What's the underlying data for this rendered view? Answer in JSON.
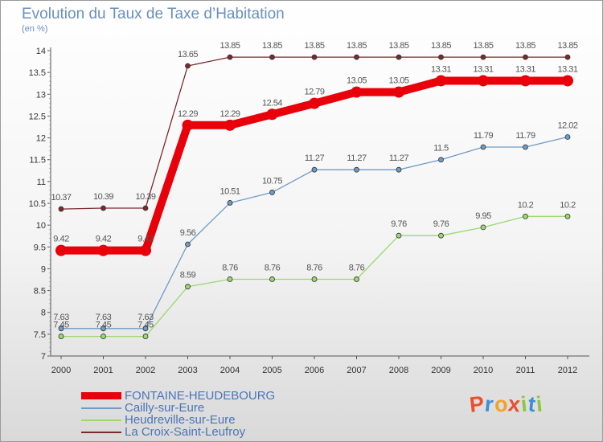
{
  "header": {
    "title": "Evolution du Taux de Taxe d’Habitation",
    "subtitle": "(en %)"
  },
  "brand": {
    "name": "Proxiti",
    "letters": [
      "P",
      "r",
      "o",
      "x",
      "i",
      "t",
      "i"
    ],
    "letter_colors": [
      "#e8502e",
      "#3b8fd8",
      "#f1a325",
      "#e8502e",
      "#8dc63f",
      "#3b8fd8",
      "#8dc63f"
    ]
  },
  "chart_data": {
    "type": "line",
    "x": [
      2000,
      2001,
      2002,
      2003,
      2004,
      2005,
      2006,
      2007,
      2008,
      2009,
      2010,
      2011,
      2012
    ],
    "ylim": [
      7,
      14
    ],
    "yticks": [
      7,
      7.5,
      8,
      8.5,
      9,
      9.5,
      10,
      10.5,
      11,
      11.5,
      12,
      12.5,
      13,
      13.5,
      14
    ],
    "grid": false,
    "legend_position": "bottom-left",
    "series": [
      {
        "name": "FONTAINE-HEUDEBOURG",
        "color": "#e8000a",
        "values": [
          9.42,
          9.42,
          9.42,
          12.29,
          12.29,
          12.54,
          12.79,
          13.05,
          13.05,
          13.31,
          13.31,
          13.31,
          13.31
        ],
        "labels": [
          "9.42",
          "9.42",
          "9.42",
          "12.29",
          "12.29",
          "12.54",
          "12.79",
          "13.05",
          "13.05",
          "13.31",
          "13.31",
          "13.31",
          "13.31"
        ],
        "emphasis": true
      },
      {
        "name": "Cailly-sur-Eure",
        "color": "#6f9bc4",
        "values": [
          7.63,
          7.63,
          7.63,
          9.56,
          10.51,
          10.75,
          11.27,
          11.27,
          11.27,
          11.5,
          11.79,
          11.79,
          12.02
        ],
        "labels": [
          "7.63",
          "7.63",
          "7.63",
          "9.56",
          "10.51",
          "10.75",
          "11.27",
          "11.27",
          "11.27",
          "11.5",
          "11.79",
          "11.79",
          "12.02"
        ],
        "emphasis": false
      },
      {
        "name": "Heudreville-sur-Eure",
        "color": "#9bd86e",
        "values": [
          7.45,
          7.45,
          7.45,
          8.59,
          8.76,
          8.76,
          8.76,
          8.76,
          9.76,
          9.76,
          9.95,
          10.2,
          10.2
        ],
        "labels": [
          "7.45",
          "7.45",
          "7.45",
          "8.59",
          "8.76",
          "8.76",
          "8.76",
          "8.76",
          "9.76",
          "9.76",
          "9.95",
          "10.2",
          "10.2"
        ],
        "emphasis": false
      },
      {
        "name": "La Croix-Saint-Leufroy",
        "color": "#7a2a2e",
        "values": [
          10.37,
          10.39,
          10.39,
          13.65,
          13.85,
          13.85,
          13.85,
          13.85,
          13.85,
          13.85,
          13.85,
          13.85,
          13.85
        ],
        "labels": [
          "10.37",
          "10.39",
          "10.39",
          "13.65",
          "13.85",
          "13.85",
          "13.85",
          "13.85",
          "13.85",
          "13.85",
          "13.85",
          "13.85",
          "13.85"
        ],
        "emphasis": false
      }
    ]
  }
}
